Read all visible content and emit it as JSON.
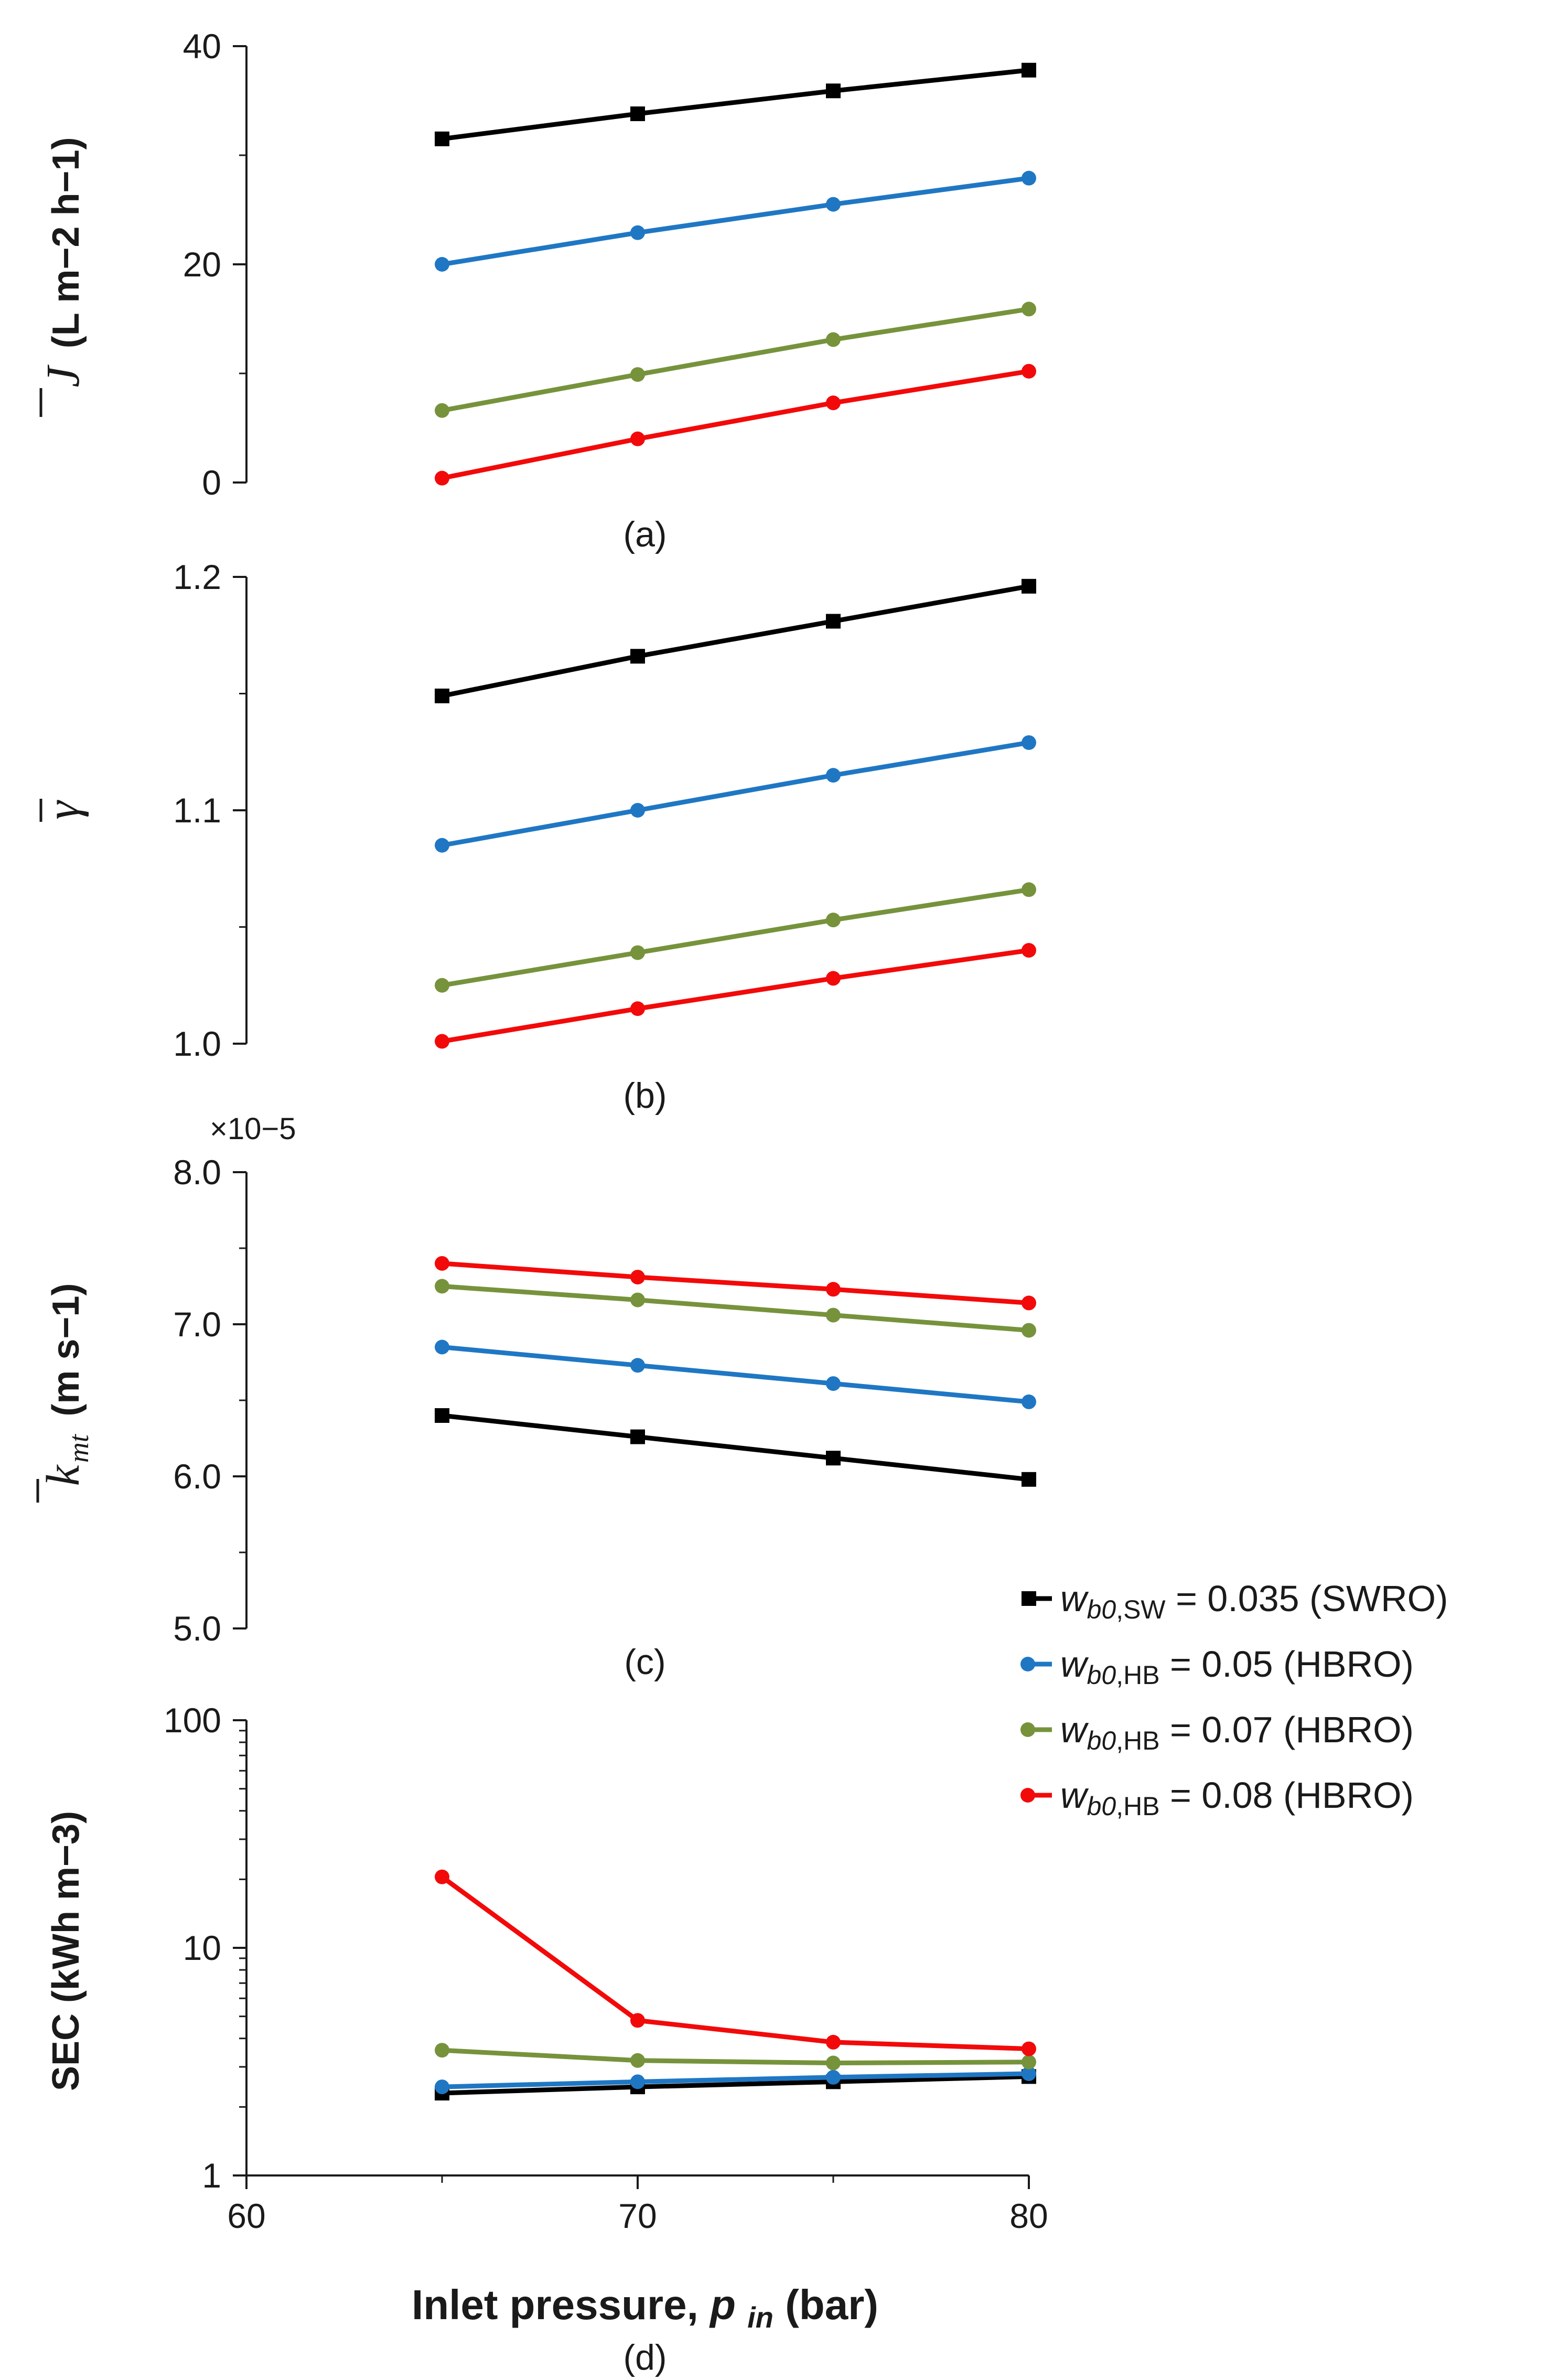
{
  "colors": {
    "swro_035": "#000000",
    "hbro_05": "#1f77c4",
    "hbro_07": "#76933c",
    "hbro_08": "#f20a0a",
    "axis": "#1a1a1a"
  },
  "x_axis": {
    "label_prefix": "Inlet pressure, ",
    "label_symbol": "p",
    "label_subscript": "in",
    "label_suffix": " (bar)",
    "ticks": [
      "60",
      "70",
      "80"
    ],
    "range": [
      60,
      80
    ]
  },
  "legend": {
    "entries": [
      {
        "symbol": "w",
        "sub": "b0,SW",
        "value": " = 0.035 (SWRO)",
        "series": "swro_035"
      },
      {
        "symbol": "w",
        "sub": "b0,HB",
        "value": " = 0.05    (HBRO)",
        "series": "hbro_05"
      },
      {
        "symbol": "w",
        "sub": "b0,HB",
        "value": " = 0.07    (HBRO)",
        "series": "hbro_07"
      },
      {
        "symbol": "w",
        "sub": "b0,HB",
        "value": " = 0.08    (HBRO)",
        "series": "hbro_08"
      }
    ]
  },
  "chart_data": [
    {
      "type": "line",
      "panel_label": "(a)",
      "ylabel_symbol": "J",
      "ylabel": "(L m−2 h−1)",
      "ylim": [
        0,
        40
      ],
      "yticks": [
        "0",
        "20",
        "40"
      ],
      "x": [
        65,
        70,
        75,
        80
      ],
      "series": [
        {
          "name": "w_b0,SW = 0.035 (SWRO)",
          "values": [
            31.5,
            33.8,
            35.9,
            37.8
          ],
          "marker": "square"
        },
        {
          "name": "w_b0,HB = 0.05 (HBRO)",
          "values": [
            20.0,
            22.9,
            25.5,
            27.9
          ],
          "marker": "circle"
        },
        {
          "name": "w_b0,HB = 0.07 (HBRO)",
          "values": [
            6.6,
            9.9,
            13.1,
            15.9
          ],
          "marker": "circle"
        },
        {
          "name": "w_b0,HB = 0.08 (HBRO)",
          "values": [
            0.4,
            4.0,
            7.3,
            10.2
          ],
          "marker": "circle"
        }
      ]
    },
    {
      "type": "line",
      "panel_label": "(b)",
      "ylabel_symbol": "γ",
      "ylabel": "",
      "ylim": [
        1.0,
        1.2
      ],
      "yticks": [
        "1.0",
        "1.1",
        "1.2"
      ],
      "x": [
        65,
        70,
        75,
        80
      ],
      "series": [
        {
          "name": "w_b0,SW = 0.035 (SWRO)",
          "values": [
            1.149,
            1.166,
            1.181,
            1.196
          ],
          "marker": "square"
        },
        {
          "name": "w_b0,HB = 0.05 (HBRO)",
          "values": [
            1.085,
            1.1,
            1.115,
            1.129
          ],
          "marker": "circle"
        },
        {
          "name": "w_b0,HB = 0.07 (HBRO)",
          "values": [
            1.025,
            1.039,
            1.053,
            1.066
          ],
          "marker": "circle"
        },
        {
          "name": "w_b0,HB = 0.08 (HBRO)",
          "values": [
            1.001,
            1.015,
            1.028,
            1.04
          ],
          "marker": "circle"
        }
      ]
    },
    {
      "type": "line",
      "panel_label": "(c)",
      "ylabel_symbol": "k",
      "ylabel_subscript": "mt",
      "ylabel": "(m s−1)",
      "multiplier": "×10−5",
      "ylim": [
        5.0,
        8.0
      ],
      "yticks": [
        "5.0",
        "6.0",
        "7.0",
        "8.0"
      ],
      "x": [
        65,
        70,
        75,
        80
      ],
      "series": [
        {
          "name": "w_b0,SW = 0.035 (SWRO)",
          "values": [
            6.4,
            6.26,
            6.12,
            5.98
          ],
          "marker": "square"
        },
        {
          "name": "w_b0,HB = 0.05 (HBRO)",
          "values": [
            6.85,
            6.73,
            6.61,
            6.49
          ],
          "marker": "circle"
        },
        {
          "name": "w_b0,HB = 0.07 (HBRO)",
          "values": [
            7.25,
            7.16,
            7.06,
            6.96
          ],
          "marker": "circle"
        },
        {
          "name": "w_b0,HB = 0.08 (HBRO)",
          "values": [
            7.4,
            7.31,
            7.23,
            7.14
          ],
          "marker": "circle"
        }
      ]
    },
    {
      "type": "line",
      "panel_label": "(d)",
      "ylabel": "SEC (kWh m−3)",
      "yscale": "log",
      "ylim": [
        1,
        100
      ],
      "yticks": [
        "1",
        "10",
        "100"
      ],
      "x": [
        65,
        70,
        75,
        80
      ],
      "series": [
        {
          "name": "w_b0,SW = 0.035 (SWRO)",
          "values": [
            2.3,
            2.45,
            2.58,
            2.72
          ],
          "marker": "square"
        },
        {
          "name": "w_b0,HB = 0.05 (HBRO)",
          "values": [
            2.45,
            2.58,
            2.7,
            2.8
          ],
          "marker": "circle"
        },
        {
          "name": "w_b0,HB = 0.07 (HBRO)",
          "values": [
            3.55,
            3.2,
            3.12,
            3.15
          ],
          "marker": "circle"
        },
        {
          "name": "w_b0,HB = 0.08 (HBRO)",
          "values": [
            20.5,
            4.8,
            3.85,
            3.6
          ],
          "marker": "circle"
        }
      ]
    }
  ]
}
